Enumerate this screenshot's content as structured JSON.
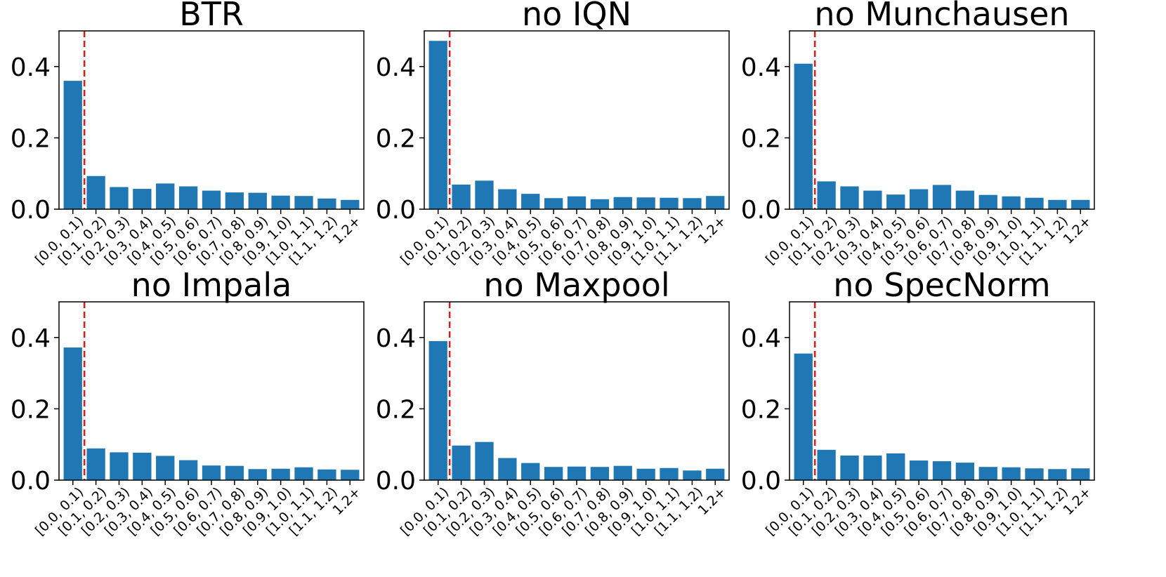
{
  "figure": {
    "bar_color": "#1f77b4",
    "threshold_line_color": "#e31a1c"
  },
  "chart_data": [
    {
      "type": "bar",
      "title": "BTR",
      "categories": [
        "[0.0, 0.1)",
        "[0.1, 0.2)",
        "[0.2, 0.3)",
        "[0.3, 0.4)",
        "[0.4, 0.5)",
        "[0.5, 0.6)",
        "[0.6, 0.7)",
        "[0.7, 0.8)",
        "[0.8, 0.9)",
        "[0.9, 1.0)",
        "[1.0, 1.1)",
        "[1.1, 1.2)",
        "1.2+"
      ],
      "values": [
        0.36,
        0.093,
        0.062,
        0.057,
        0.072,
        0.064,
        0.052,
        0.047,
        0.046,
        0.038,
        0.037,
        0.03,
        0.026
      ],
      "ylim": [
        0,
        0.5
      ],
      "yticks": [
        "0.0",
        "0.2",
        "0.4"
      ],
      "threshold_x": 0.5,
      "grid": false
    },
    {
      "type": "bar",
      "title": "no IQN",
      "categories": [
        "[0.0, 0.1)",
        "[0.1, 0.2)",
        "[0.2, 0.3)",
        "[0.3, 0.4)",
        "[0.4, 0.5)",
        "[0.5, 0.6)",
        "[0.6, 0.7)",
        "[0.7, 0.8)",
        "[0.8, 0.9)",
        "[0.9, 1.0)",
        "[1.0, 1.1)",
        "[1.1, 1.2)",
        "1.2+"
      ],
      "values": [
        0.472,
        0.069,
        0.08,
        0.056,
        0.043,
        0.031,
        0.036,
        0.028,
        0.034,
        0.033,
        0.032,
        0.031,
        0.037
      ],
      "ylim": [
        0,
        0.5
      ],
      "yticks": [
        "0.0",
        "0.2",
        "0.4"
      ],
      "threshold_x": 0.5,
      "grid": false
    },
    {
      "type": "bar",
      "title": "no Munchausen",
      "categories": [
        "[0.0, 0.1)",
        "[0.1, 0.2)",
        "[0.2, 0.3)",
        "[0.3, 0.4)",
        "[0.4, 0.5)",
        "[0.5, 0.6)",
        "[0.6, 0.7)",
        "[0.7, 0.8)",
        "[0.8, 0.9)",
        "[0.9, 1.0)",
        "[1.0, 1.1)",
        "[1.1, 1.2)",
        "1.2+"
      ],
      "values": [
        0.408,
        0.078,
        0.064,
        0.052,
        0.041,
        0.056,
        0.068,
        0.052,
        0.04,
        0.036,
        0.032,
        0.026,
        0.026
      ],
      "ylim": [
        0,
        0.5
      ],
      "yticks": [
        "0.0",
        "0.2",
        "0.4"
      ],
      "threshold_x": 0.5,
      "grid": false
    },
    {
      "type": "bar",
      "title": "no Impala",
      "categories": [
        "[0.0, 0.1)",
        "[0.1, 0.2)",
        "[0.2, 0.3)",
        "[0.3, 0.4)",
        "[0.4, 0.5)",
        "[0.5, 0.6)",
        "[0.6, 0.7)",
        "[0.7, 0.8)",
        "[0.8, 0.9)",
        "[0.9, 1.0)",
        "[1.0, 1.1)",
        "[1.1, 1.2)",
        "1.2+"
      ],
      "values": [
        0.372,
        0.089,
        0.078,
        0.077,
        0.068,
        0.056,
        0.041,
        0.04,
        0.031,
        0.032,
        0.036,
        0.03,
        0.029
      ],
      "ylim": [
        0,
        0.5
      ],
      "yticks": [
        "0.0",
        "0.2",
        "0.4"
      ],
      "threshold_x": 0.5,
      "grid": false
    },
    {
      "type": "bar",
      "title": "no Maxpool",
      "categories": [
        "[0.0, 0.1)",
        "[0.1, 0.2)",
        "[0.2, 0.3)",
        "[0.3, 0.4)",
        "[0.4, 0.5)",
        "[0.5, 0.6)",
        "[0.6, 0.7)",
        "[0.7, 0.8)",
        "[0.8, 0.9)",
        "[0.9, 1.0)",
        "[1.0, 1.1)",
        "[1.1, 1.2)",
        "1.2+"
      ],
      "values": [
        0.39,
        0.097,
        0.107,
        0.062,
        0.048,
        0.037,
        0.038,
        0.037,
        0.04,
        0.032,
        0.034,
        0.027,
        0.032
      ],
      "ylim": [
        0,
        0.5
      ],
      "yticks": [
        "0.0",
        "0.2",
        "0.4"
      ],
      "threshold_x": 0.5,
      "grid": false
    },
    {
      "type": "bar",
      "title": "no SpecNorm",
      "categories": [
        "[0.0, 0.1)",
        "[0.1, 0.2)",
        "[0.2, 0.3)",
        "[0.3, 0.4)",
        "[0.4, 0.5)",
        "[0.5, 0.6)",
        "[0.6, 0.7)",
        "[0.7, 0.8)",
        "[0.8, 0.9)",
        "[0.9, 1.0)",
        "[1.0, 1.1)",
        "[1.1, 1.2)",
        "1.2+"
      ],
      "values": [
        0.355,
        0.085,
        0.069,
        0.069,
        0.075,
        0.055,
        0.053,
        0.049,
        0.037,
        0.036,
        0.033,
        0.031,
        0.033
      ],
      "ylim": [
        0,
        0.5
      ],
      "yticks": [
        "0.0",
        "0.2",
        "0.4"
      ],
      "threshold_x": 0.5,
      "grid": false
    }
  ]
}
